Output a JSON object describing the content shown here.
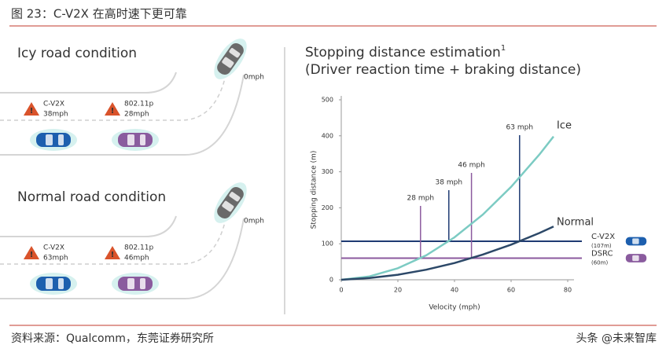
{
  "header": {
    "title": "图 23：C-V2X 在高时速下更可靠"
  },
  "diagram": {
    "sections": [
      {
        "title": "Icy road condition",
        "warnings": [
          {
            "system": "C-V2X",
            "speed": "38mph"
          },
          {
            "system": "802.11p",
            "speed": "28mph"
          }
        ],
        "stopped": "0mph"
      },
      {
        "title": "Normal road condition",
        "warnings": [
          {
            "system": "C-V2X",
            "speed": "63mph"
          },
          {
            "system": "802.11p",
            "speed": "46mph"
          }
        ],
        "stopped": "0mph"
      }
    ]
  },
  "chart_data": {
    "type": "line",
    "title": "Stopping distance estimation",
    "title_superscript": "1",
    "subtitle": "(Driver reaction time + braking distance)",
    "x_label": "Velocity (mph)",
    "y_label": "Stopping distance (m)",
    "xlim": [
      0,
      80
    ],
    "xticks": [
      0,
      20,
      40,
      60,
      80
    ],
    "ylim": [
      0,
      500
    ],
    "yticks": [
      0,
      100,
      200,
      300,
      400,
      500
    ],
    "series": [
      {
        "name": "Ice",
        "color": "#7ccbc3",
        "x": [
          0,
          10,
          20,
          30,
          40,
          50,
          60,
          70,
          75
        ],
        "values": [
          0,
          9.3,
          32,
          68,
          118,
          181,
          258,
          348,
          398
        ]
      },
      {
        "name": "Normal",
        "color": "#2c4868",
        "x": [
          0,
          10,
          20,
          30,
          40,
          50,
          60,
          70,
          75
        ],
        "values": [
          0,
          4.7,
          14,
          28,
          46.6,
          70,
          97.7,
          130,
          148
        ]
      }
    ],
    "reference_lines": [
      {
        "name": "C-V2X",
        "note": "(107m)",
        "value": 107,
        "color": "#1f3b73"
      },
      {
        "name": "DSRC",
        "note": "(60m)",
        "value": 60,
        "color": "#8b5a9e"
      }
    ],
    "markers": [
      {
        "label": "28 mph",
        "x": 28,
        "color": "#8b5a9e"
      },
      {
        "label": "38 mph",
        "x": 38,
        "color": "#1f3b73"
      },
      {
        "label": "46 mph",
        "x": 46,
        "color": "#8b5a9e"
      },
      {
        "label": "63 mph",
        "x": 63,
        "color": "#1f3b73"
      }
    ]
  },
  "footer": {
    "source": "资料来源：Qualcomm，东莞证券研究所",
    "watermark": "头条 @未来智库"
  }
}
